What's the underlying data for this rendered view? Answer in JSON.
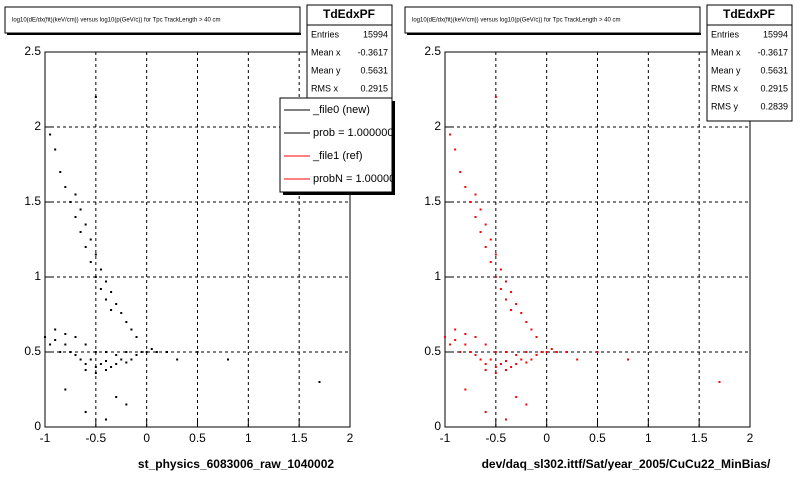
{
  "chart_data": [
    {
      "type": "scatter",
      "title": "log10(dE/dx(fit)(keV/cm)) versus log10(p(GeV/c)) for Tpc TrackLength > 40 cm",
      "x_label": "st_physics_6083006_raw_1040002",
      "xlim": [
        -1,
        2
      ],
      "ylim": [
        0,
        2.5
      ],
      "xticks": [
        -1,
        -0.5,
        0,
        0.5,
        1,
        1.5,
        2
      ],
      "yticks": [
        0,
        0.5,
        1,
        1.5,
        2,
        2.5
      ],
      "grid": true,
      "stats": {
        "title": "TdEdxPF",
        "rows": [
          {
            "label": "Entries",
            "value": 15994
          },
          {
            "label": "Mean x",
            "value": -0.3617
          },
          {
            "label": "Mean y",
            "value": 0.5631
          },
          {
            "label": "RMS x",
            "value": 0.2915
          }
        ]
      },
      "legend": {
        "entries": [
          {
            "label": "_file0 (new)",
            "color": "#000000"
          },
          {
            "label": "prob = 1.000000",
            "color": "#000000"
          },
          {
            "label": "_file1 (ref)",
            "color": "#ff0000"
          },
          {
            "label": "probN = 1.00000",
            "color": "#ff0000"
          }
        ]
      },
      "series": [
        {
          "color": "#000000",
          "x": [
            -1,
            -0.95,
            -0.9,
            -0.85,
            -0.8,
            -0.75,
            -0.7,
            -0.65,
            -0.6,
            -0.55,
            -0.5,
            -0.45,
            -0.4,
            -0.35,
            -0.3,
            -0.25,
            -0.2,
            -0.15,
            -0.1,
            -0.05,
            0,
            0.05,
            0.1,
            0.2,
            -0.9,
            -0.8,
            -0.7,
            -0.6,
            -0.5,
            -0.4,
            -0.3,
            -0.2,
            -0.6,
            -0.5,
            -0.4,
            -0.7,
            -0.65,
            -0.6,
            -0.55,
            -0.5,
            -0.45,
            -0.4,
            -0.35,
            -0.3,
            -0.25,
            -0.2,
            -0.15,
            -0.1,
            -0.95,
            -0.9,
            -0.85,
            -0.8,
            -0.75,
            -0.7,
            -0.65,
            -0.6,
            -0.55,
            -0.5,
            -0.45,
            -0.4,
            -0.35,
            -0.6,
            -0.4,
            -0.2,
            0.3,
            0.5,
            0.8,
            1.7,
            -0.5,
            -0.8,
            -0.3
          ],
          "y": [
            0.6,
            0.55,
            0.58,
            0.5,
            0.55,
            0.5,
            0.48,
            0.45,
            0.42,
            0.45,
            0.4,
            0.42,
            0.44,
            0.4,
            0.42,
            0.45,
            0.43,
            0.45,
            0.48,
            0.5,
            0.5,
            0.52,
            0.5,
            0.5,
            0.65,
            0.62,
            0.6,
            0.55,
            0.5,
            0.5,
            0.48,
            0.5,
            0.38,
            0.36,
            0.38,
            1.55,
            1.45,
            1.35,
            1.25,
            1.15,
            1.05,
            0.97,
            0.9,
            0.82,
            0.76,
            0.7,
            0.65,
            0.6,
            1.95,
            1.85,
            1.7,
            1.6,
            1.5,
            1.4,
            1.3,
            1.2,
            1.1,
            1.0,
            0.92,
            0.85,
            0.78,
            0.1,
            0.05,
            0.15,
            0.45,
            0.5,
            0.45,
            0.3,
            2.2,
            0.25,
            0.2
          ]
        }
      ]
    },
    {
      "type": "scatter",
      "title": "log10(dE/dx(fit)(keV/cm)) versus log10(p(GeV/c)) for Tpc TrackLength > 40 cm",
      "x_label": "dev/daq_sl302.ittf/Sat/year_2005/CuCu22_MinBias/",
      "xlim": [
        -1,
        2
      ],
      "ylim": [
        0,
        2.5
      ],
      "xticks": [
        -1,
        -0.5,
        0,
        0.5,
        1,
        1.5,
        2
      ],
      "yticks": [
        0,
        0.5,
        1,
        1.5,
        2,
        2.5
      ],
      "grid": true,
      "stats": {
        "title": "TdEdxPF",
        "rows": [
          {
            "label": "Entries",
            "value": 15994
          },
          {
            "label": "Mean x",
            "value": -0.3617
          },
          {
            "label": "Mean y",
            "value": 0.5631
          },
          {
            "label": "RMS x",
            "value": 0.2915
          },
          {
            "label": "RMS y",
            "value": 0.2839
          }
        ]
      },
      "series": [
        {
          "color": "#ff0000",
          "x": [
            -1,
            -0.95,
            -0.9,
            -0.85,
            -0.8,
            -0.75,
            -0.7,
            -0.65,
            -0.6,
            -0.55,
            -0.5,
            -0.45,
            -0.4,
            -0.35,
            -0.3,
            -0.25,
            -0.2,
            -0.15,
            -0.1,
            -0.05,
            0,
            0.05,
            0.1,
            0.2,
            -0.9,
            -0.8,
            -0.7,
            -0.6,
            -0.5,
            -0.4,
            -0.3,
            -0.2,
            -0.6,
            -0.5,
            -0.4,
            -0.7,
            -0.65,
            -0.6,
            -0.55,
            -0.5,
            -0.45,
            -0.4,
            -0.35,
            -0.3,
            -0.25,
            -0.2,
            -0.15,
            -0.1,
            -0.95,
            -0.9,
            -0.85,
            -0.8,
            -0.75,
            -0.7,
            -0.65,
            -0.6,
            -0.55,
            -0.5,
            -0.45,
            -0.4,
            -0.35,
            -0.6,
            -0.4,
            -0.2,
            0.3,
            0.5,
            0.8,
            1.7,
            -0.5,
            -0.8,
            -0.3
          ],
          "y": [
            0.6,
            0.55,
            0.58,
            0.5,
            0.55,
            0.5,
            0.48,
            0.45,
            0.42,
            0.45,
            0.4,
            0.42,
            0.44,
            0.4,
            0.42,
            0.45,
            0.43,
            0.45,
            0.48,
            0.5,
            0.5,
            0.52,
            0.5,
            0.5,
            0.65,
            0.62,
            0.6,
            0.55,
            0.5,
            0.5,
            0.48,
            0.5,
            0.38,
            0.36,
            0.38,
            1.55,
            1.45,
            1.35,
            1.25,
            1.15,
            1.05,
            0.97,
            0.9,
            0.82,
            0.76,
            0.7,
            0.65,
            0.6,
            1.95,
            1.85,
            1.7,
            1.6,
            1.5,
            1.4,
            1.3,
            1.2,
            1.1,
            1.0,
            0.92,
            0.85,
            0.78,
            0.1,
            0.05,
            0.15,
            0.45,
            0.5,
            0.45,
            0.3,
            2.2,
            0.25,
            0.2
          ]
        }
      ]
    }
  ]
}
